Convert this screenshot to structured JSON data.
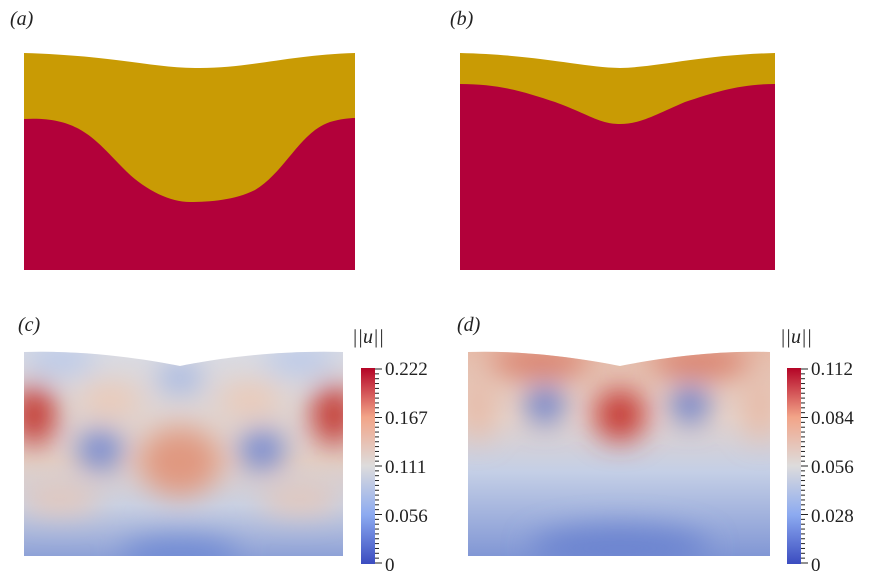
{
  "panels": {
    "a": {
      "label": "(a)"
    },
    "b": {
      "label": "(b)"
    },
    "c": {
      "label": "(c)"
    },
    "d": {
      "label": "(d)"
    }
  },
  "colors": {
    "fluid_top": "#c99b04",
    "fluid_bottom": "#b2013a",
    "cmap_low": "#3b4cc0",
    "cmap_mid": "#dddcdc",
    "cmap_high": "#b40426"
  },
  "colorbar_c": {
    "title": "||u||",
    "ticks": [
      "0.222",
      "0.167",
      "0.111",
      "0.056",
      "0"
    ]
  },
  "colorbar_d": {
    "title": "||u||",
    "ticks": [
      "0.112",
      "0.084",
      "0.056",
      "0.028",
      "0"
    ]
  }
}
